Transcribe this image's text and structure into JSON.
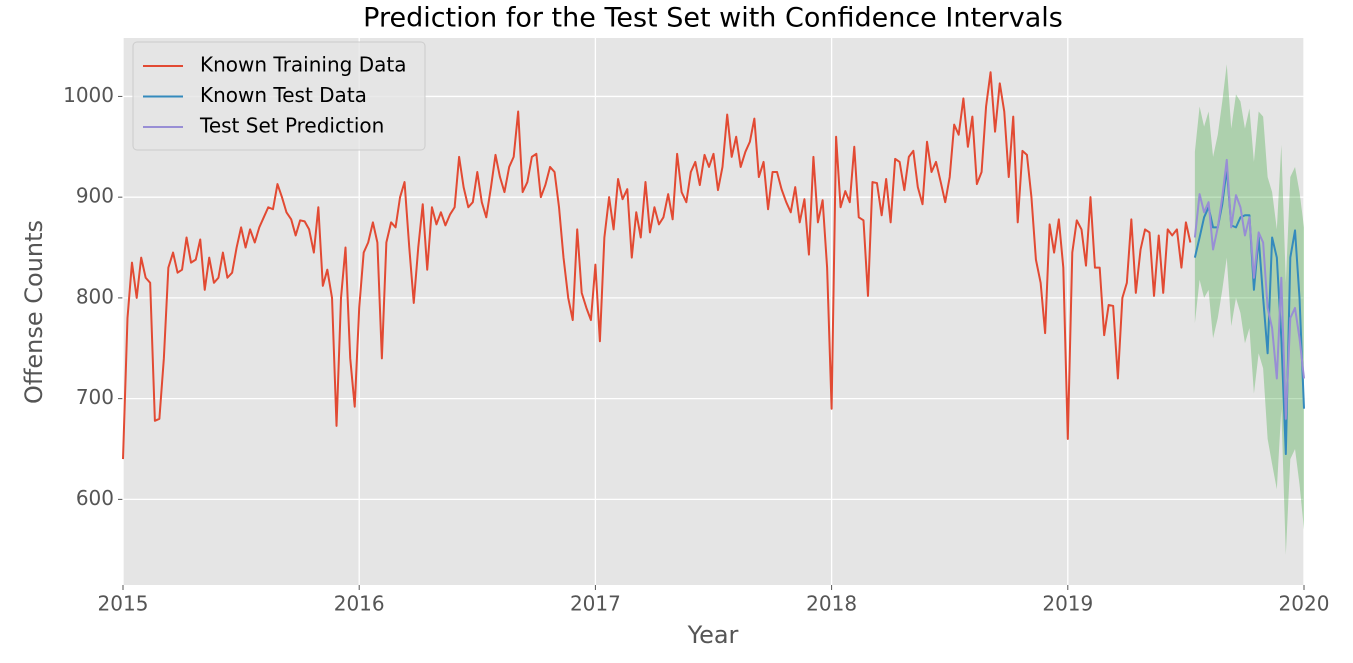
{
  "chart_data": {
    "type": "line",
    "title": "Prediction for the Test Set with Confidence Intervals",
    "x_label": "Year",
    "y_label": "Offense Counts",
    "xlim": [
      2015,
      2020
    ],
    "xticks": [
      2015,
      2016,
      2017,
      2018,
      2019,
      2020
    ],
    "ylim": [
      515,
      1058
    ],
    "yticks": [
      600,
      700,
      800,
      900,
      1000
    ],
    "grid": true,
    "legend": "upper left",
    "series": [
      {
        "name": "Known Training Data",
        "color": "#E24A33",
        "x": [
          2015,
          2015.019,
          2015.038,
          2015.058,
          2015.077,
          2015.096,
          2015.115,
          2015.135,
          2015.154,
          2015.173,
          2015.192,
          2015.212,
          2015.231,
          2015.25,
          2015.269,
          2015.288,
          2015.308,
          2015.327,
          2015.346,
          2015.365,
          2015.385,
          2015.404,
          2015.423,
          2015.442,
          2015.462,
          2015.481,
          2015.5,
          2015.519,
          2015.538,
          2015.558,
          2015.577,
          2015.596,
          2015.615,
          2015.635,
          2015.654,
          2015.673,
          2015.692,
          2015.712,
          2015.731,
          2015.75,
          2015.769,
          2015.788,
          2015.808,
          2015.827,
          2015.846,
          2015.865,
          2015.885,
          2015.904,
          2015.923,
          2015.942,
          2015.962,
          2015.981,
          2016,
          2016.019,
          2016.038,
          2016.058,
          2016.077,
          2016.096,
          2016.115,
          2016.135,
          2016.154,
          2016.173,
          2016.192,
          2016.212,
          2016.231,
          2016.25,
          2016.269,
          2016.288,
          2016.308,
          2016.327,
          2016.346,
          2016.365,
          2016.385,
          2016.404,
          2016.423,
          2016.442,
          2016.462,
          2016.481,
          2016.5,
          2016.519,
          2016.538,
          2016.558,
          2016.577,
          2016.596,
          2016.615,
          2016.635,
          2016.654,
          2016.673,
          2016.692,
          2016.712,
          2016.731,
          2016.75,
          2016.769,
          2016.788,
          2016.808,
          2016.827,
          2016.846,
          2016.865,
          2016.885,
          2016.904,
          2016.923,
          2016.942,
          2016.962,
          2016.981,
          2017,
          2017.019,
          2017.038,
          2017.058,
          2017.077,
          2017.096,
          2017.115,
          2017.135,
          2017.154,
          2017.173,
          2017.192,
          2017.212,
          2017.231,
          2017.25,
          2017.269,
          2017.288,
          2017.308,
          2017.327,
          2017.346,
          2017.365,
          2017.385,
          2017.404,
          2017.423,
          2017.442,
          2017.462,
          2017.481,
          2017.5,
          2017.519,
          2017.538,
          2017.558,
          2017.577,
          2017.596,
          2017.615,
          2017.635,
          2017.654,
          2017.673,
          2017.692,
          2017.712,
          2017.731,
          2017.75,
          2017.769,
          2017.788,
          2017.808,
          2017.827,
          2017.846,
          2017.865,
          2017.885,
          2017.904,
          2017.923,
          2017.942,
          2017.962,
          2017.981,
          2018,
          2018.019,
          2018.038,
          2018.058,
          2018.077,
          2018.096,
          2018.115,
          2018.135,
          2018.154,
          2018.173,
          2018.192,
          2018.212,
          2018.231,
          2018.25,
          2018.269,
          2018.288,
          2018.308,
          2018.327,
          2018.346,
          2018.365,
          2018.385,
          2018.404,
          2018.423,
          2018.442,
          2018.462,
          2018.481,
          2018.5,
          2018.519,
          2018.538,
          2018.558,
          2018.577,
          2018.596,
          2018.615,
          2018.635,
          2018.654,
          2018.673,
          2018.692,
          2018.712,
          2018.731,
          2018.75,
          2018.769,
          2018.788,
          2018.808,
          2018.827,
          2018.846,
          2018.865,
          2018.885,
          2018.904,
          2018.923,
          2018.942,
          2018.962,
          2018.981,
          2019,
          2019.019,
          2019.038,
          2019.058,
          2019.077,
          2019.096,
          2019.115,
          2019.135,
          2019.154,
          2019.173,
          2019.192,
          2019.212,
          2019.231,
          2019.25,
          2019.269,
          2019.288,
          2019.308,
          2019.327,
          2019.346,
          2019.365,
          2019.385,
          2019.404,
          2019.423,
          2019.442,
          2019.462,
          2019.481,
          2019.5,
          2019.519
        ],
        "values": [
          640,
          780,
          835,
          800,
          840,
          820,
          815,
          678,
          680,
          740,
          830,
          845,
          825,
          828,
          860,
          835,
          838,
          858,
          808,
          840,
          815,
          820,
          845,
          820,
          825,
          850,
          870,
          850,
          868,
          855,
          870,
          880,
          890,
          888,
          913,
          900,
          885,
          878,
          862,
          877,
          876,
          868,
          845,
          890,
          812,
          828,
          800,
          673,
          800,
          850,
          740,
          692,
          790,
          845,
          855,
          875,
          855,
          740,
          855,
          875,
          870,
          900,
          915,
          850,
          795,
          850,
          893,
          828,
          890,
          873,
          885,
          872,
          883,
          890,
          940,
          910,
          890,
          895,
          925,
          895,
          880,
          910,
          942,
          920,
          905,
          930,
          940,
          985,
          905,
          915,
          940,
          943,
          900,
          912,
          930,
          925,
          890,
          840,
          800,
          778,
          868,
          805,
          790,
          778,
          833,
          757,
          860,
          900,
          868,
          918,
          898,
          908,
          840,
          885,
          860,
          915,
          865,
          890,
          873,
          880,
          903,
          878,
          943,
          905,
          895,
          925,
          935,
          912,
          942,
          930,
          943,
          907,
          930,
          982,
          940,
          960,
          930,
          945,
          955,
          978,
          920,
          935,
          888,
          925,
          925,
          908,
          895,
          885,
          910,
          875,
          898,
          843,
          940,
          875,
          897,
          830,
          690,
          960,
          890,
          906,
          895,
          950,
          880,
          877,
          802,
          915,
          914,
          882,
          918,
          875,
          938,
          935,
          907,
          940,
          946,
          910,
          893,
          955,
          925,
          935,
          915,
          895,
          920,
          972,
          962,
          998,
          950,
          980,
          913,
          925,
          990,
          1024,
          965,
          1013,
          985,
          920,
          980,
          875,
          946,
          942,
          900,
          838,
          815,
          765,
          873,
          845,
          878,
          830,
          660,
          845,
          877,
          868,
          832,
          900,
          830,
          830,
          763,
          793,
          792,
          720,
          800,
          815,
          878,
          805,
          848,
          868,
          865,
          802,
          862,
          805,
          868,
          862,
          868,
          830,
          875,
          855
        ]
      },
      {
        "name": "Known Test Data",
        "color": "#348ABD",
        "x": [
          2019.538,
          2019.558,
          2019.577,
          2019.596,
          2019.615,
          2019.635,
          2019.654,
          2019.673,
          2019.692,
          2019.712,
          2019.731,
          2019.75,
          2019.769,
          2019.788,
          2019.808,
          2019.827,
          2019.846,
          2019.865,
          2019.885,
          2019.904,
          2019.923,
          2019.942,
          2019.962,
          2019.981,
          2020
        ],
        "values": [
          840,
          860,
          880,
          890,
          870,
          870,
          893,
          928,
          872,
          870,
          880,
          882,
          882,
          808,
          860,
          800,
          745,
          860,
          840,
          760,
          645,
          840,
          867,
          800,
          690
        ]
      },
      {
        "name": "Test Set Prediction",
        "color": "#988ED5",
        "x": [
          2019.538,
          2019.558,
          2019.577,
          2019.596,
          2019.615,
          2019.635,
          2019.654,
          2019.673,
          2019.692,
          2019.712,
          2019.731,
          2019.75,
          2019.769,
          2019.788,
          2019.808,
          2019.827,
          2019.846,
          2019.865,
          2019.885,
          2019.904,
          2019.923,
          2019.942,
          2019.962,
          2019.981,
          2020
        ],
        "values": [
          860,
          903,
          885,
          895,
          848,
          870,
          900,
          937,
          870,
          902,
          890,
          862,
          880,
          820,
          865,
          855,
          790,
          770,
          720,
          820,
          680,
          780,
          790,
          760,
          720
        ]
      }
    ],
    "confidence_band": {
      "color": "#2ca02c",
      "x": [
        2019.538,
        2019.558,
        2019.577,
        2019.596,
        2019.615,
        2019.635,
        2019.654,
        2019.673,
        2019.692,
        2019.712,
        2019.731,
        2019.75,
        2019.769,
        2019.788,
        2019.808,
        2019.827,
        2019.846,
        2019.865,
        2019.885,
        2019.904,
        2019.923,
        2019.942,
        2019.962,
        2019.981,
        2020
      ],
      "lower": [
        775,
        818,
        800,
        808,
        760,
        780,
        808,
        840,
        772,
        800,
        785,
        755,
        770,
        705,
        745,
        730,
        660,
        635,
        610,
        690,
        545,
        640,
        650,
        615,
        570
      ],
      "upper": [
        945,
        990,
        970,
        985,
        940,
        962,
        995,
        1032,
        968,
        1002,
        995,
        968,
        988,
        935,
        985,
        980,
        920,
        905,
        868,
        952,
        815,
        920,
        930,
        905,
        870
      ]
    }
  }
}
